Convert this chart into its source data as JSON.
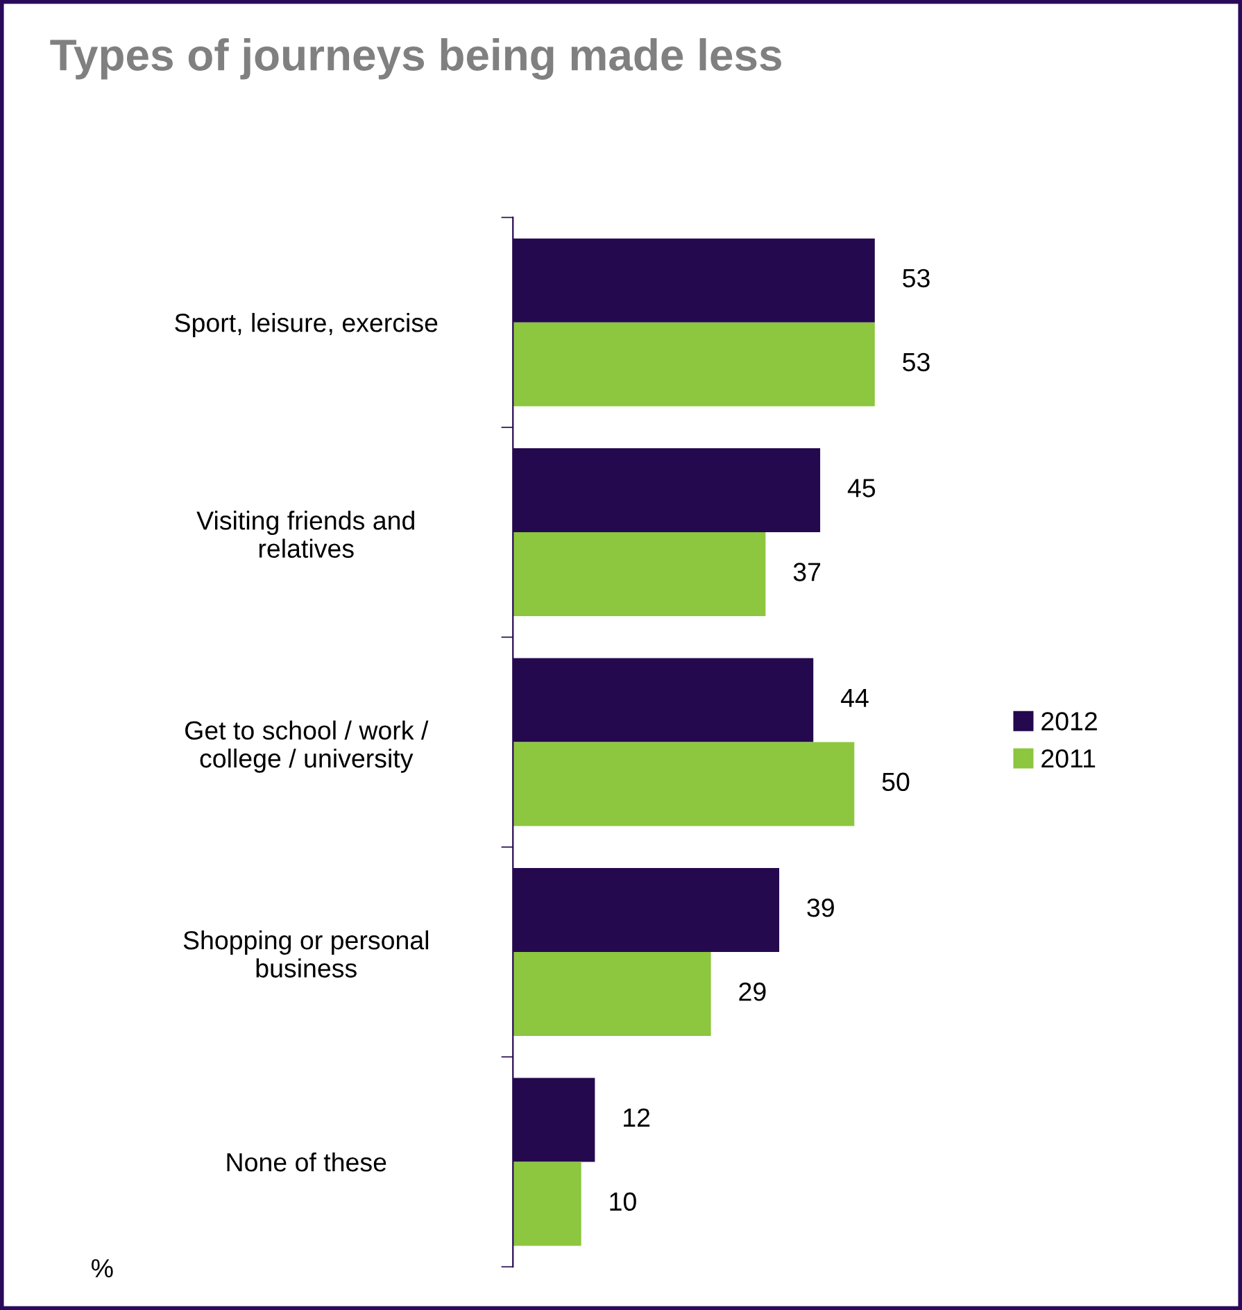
{
  "chart_data": {
    "type": "bar",
    "orientation": "horizontal",
    "title": "Types of journeys being made less",
    "categories": [
      "Sport, leisure, exercise",
      "Visiting friends and\nrelatives",
      "Get to school / work /\ncollege / university",
      "Shopping or personal\nbusiness",
      "None of these"
    ],
    "series": [
      {
        "name": "2012",
        "color": "#24094f",
        "values": [
          53,
          45,
          44,
          39,
          12
        ]
      },
      {
        "name": "2011",
        "color": "#8dc63f",
        "values": [
          53,
          37,
          50,
          29,
          10
        ]
      }
    ],
    "data_labels": true,
    "legend": "right",
    "tick_labels": "y",
    "grid": false,
    "annotations": [
      "%"
    ]
  }
}
